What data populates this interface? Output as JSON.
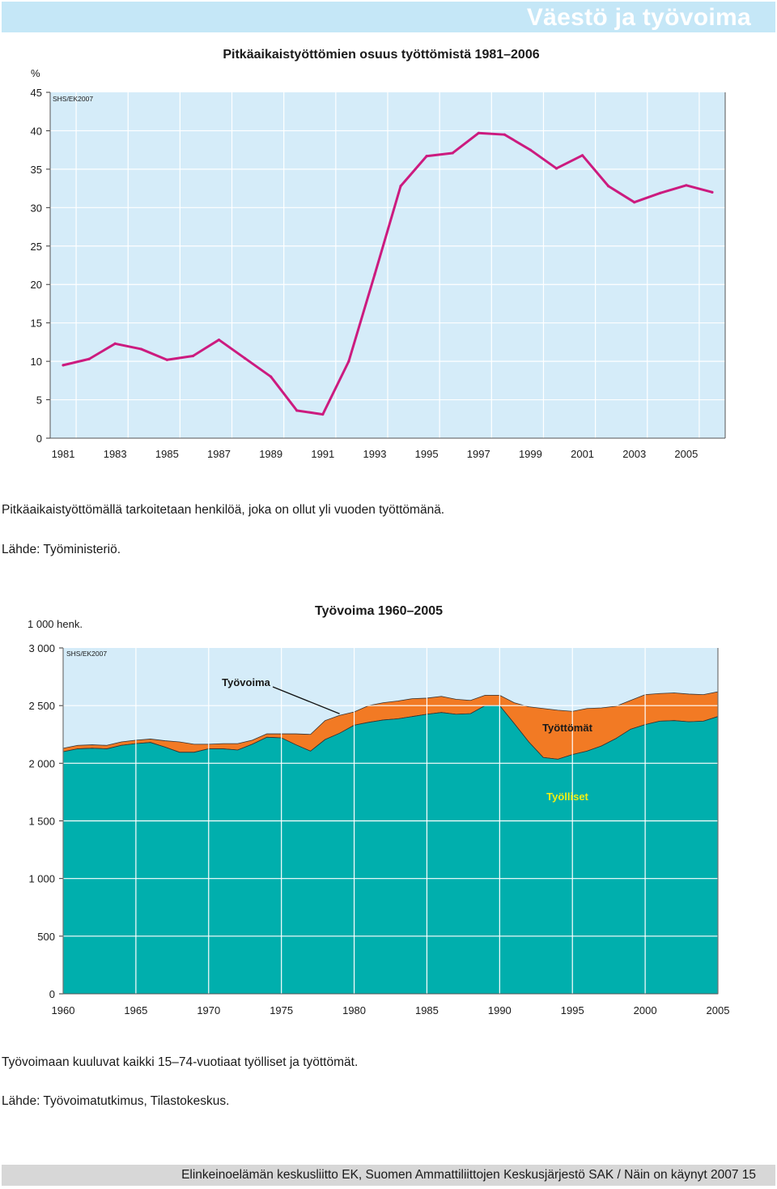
{
  "header": {
    "title": "Väestö ja työvoima"
  },
  "chart1_notes": {
    "definition": "Pitkäaikaistyöttömällä tarkoitetaan henkilöä, joka on ollut yli vuoden työttömänä.",
    "source": "Lähde: Työministeriö."
  },
  "chart2_notes": {
    "definition": "Työvoimaan kuuluvat kaikki 15–74-vuotiaat työlliset ja työttömät.",
    "source": "Lähde: Työvoimatutkimus, Tilastokeskus."
  },
  "footer": {
    "text": "Elinkeinoelämän keskusliitto EK, Suomen Ammattiliittojen Keskusjärjestö SAK / Näin on käynyt 2007 15"
  },
  "colors": {
    "plot_bg": "#d5ecf9",
    "line": "#cc1b7f",
    "employed": "#00afad",
    "unemployed": "#f27a24",
    "grid": "#ffffff",
    "highlight_label": "#f3ef12"
  },
  "chart_data": [
    {
      "type": "line",
      "title": "Pitkäaikaistyöttömien osuus työttömistä 1981–2006",
      "ylabel": "%",
      "source_label": "SHS/EK2007",
      "ylim": [
        0,
        45
      ],
      "yticks": [
        0,
        5,
        10,
        15,
        20,
        25,
        30,
        35,
        40,
        45
      ],
      "xticks": [
        1981,
        1983,
        1985,
        1987,
        1989,
        1991,
        1993,
        1995,
        1997,
        1999,
        2001,
        2003,
        2005
      ],
      "x": [
        1981,
        1982,
        1983,
        1984,
        1985,
        1986,
        1987,
        1988,
        1989,
        1990,
        1991,
        1992,
        1993,
        1994,
        1995,
        1996,
        1997,
        1998,
        1999,
        2000,
        2001,
        2002,
        2003,
        2004,
        2005,
        2006
      ],
      "series": [
        {
          "values": [
            9.5,
            10.3,
            12.3,
            11.6,
            10.2,
            10.7,
            12.8,
            10.4,
            8.0,
            3.6,
            3.1,
            10.0,
            21.3,
            32.8,
            36.7,
            37.1,
            39.7,
            39.5,
            37.5,
            35.1,
            36.8,
            32.8,
            30.7,
            31.9,
            32.9,
            32.0
          ]
        }
      ]
    },
    {
      "type": "area",
      "title": "Työvoima 1960–2005",
      "ylabel": "1 000 henk.",
      "source_label": "SHS/EK2007",
      "ylim": [
        0,
        3000
      ],
      "yticks": [
        0,
        500,
        1000,
        1500,
        2000,
        2500,
        3000
      ],
      "ytick_labels": [
        "0",
        "500",
        "1 000",
        "1 500",
        "2 000",
        "2 500",
        "3 000"
      ],
      "xticks": [
        1960,
        1965,
        1970,
        1975,
        1980,
        1985,
        1990,
        1995,
        2000,
        2005
      ],
      "annotations": [
        {
          "text": "Työvoima",
          "points_to_year": 1979
        },
        {
          "text": "Työttömät"
        },
        {
          "text": "Työlliset"
        }
      ],
      "x": [
        1960,
        1961,
        1962,
        1963,
        1964,
        1965,
        1966,
        1967,
        1968,
        1969,
        1970,
        1971,
        1972,
        1973,
        1974,
        1975,
        1976,
        1977,
        1978,
        1979,
        1980,
        1981,
        1982,
        1983,
        1984,
        1985,
        1986,
        1987,
        1988,
        1989,
        1990,
        1991,
        1992,
        1993,
        1994,
        1995,
        1996,
        1997,
        1998,
        1999,
        2000,
        2001,
        2002,
        2003,
        2004,
        2005
      ],
      "series": [
        {
          "name": "Työlliset",
          "values": [
            2100,
            2125,
            2130,
            2125,
            2155,
            2170,
            2180,
            2140,
            2095,
            2095,
            2125,
            2125,
            2115,
            2165,
            2225,
            2220,
            2160,
            2105,
            2205,
            2260,
            2330,
            2355,
            2375,
            2385,
            2405,
            2425,
            2440,
            2425,
            2430,
            2500,
            2500,
            2345,
            2185,
            2050,
            2035,
            2075,
            2105,
            2150,
            2215,
            2295,
            2335,
            2365,
            2370,
            2360,
            2365,
            2405
          ]
        },
        {
          "name": "Työttömät",
          "values": [
            30,
            30,
            30,
            30,
            30,
            30,
            30,
            55,
            90,
            70,
            40,
            45,
            55,
            35,
            30,
            35,
            95,
            145,
            165,
            155,
            115,
            145,
            150,
            155,
            155,
            140,
            140,
            130,
            115,
            90,
            90,
            180,
            305,
            425,
            425,
            375,
            370,
            330,
            280,
            250,
            260,
            240,
            240,
            240,
            230,
            215
          ]
        }
      ]
    }
  ]
}
